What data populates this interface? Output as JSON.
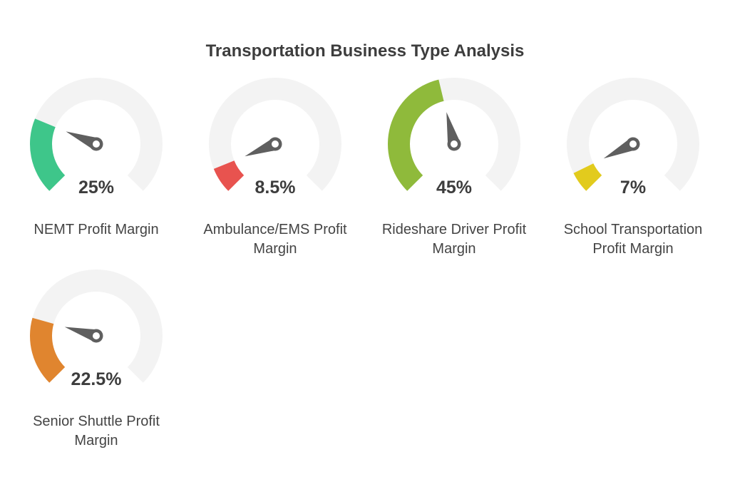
{
  "chart_data": {
    "type": "gauge",
    "title": "Transportation Business Type Analysis",
    "range": [
      0,
      100
    ],
    "unit": "%",
    "track_color": "#f3f3f3",
    "needle_color": "#5f5f5f",
    "gauges": [
      {
        "label": "NEMT Profit Margin",
        "value": 25,
        "value_label": "25%",
        "color": "#3ec68a"
      },
      {
        "label": "Ambulance/EMS Profit Margin",
        "value": 8.5,
        "value_label": "8.5%",
        "color": "#e8534f"
      },
      {
        "label": "Rideshare Driver Profit Margin",
        "value": 45,
        "value_label": "45%",
        "color": "#8fba3b"
      },
      {
        "label": "School Transportation Profit Margin",
        "value": 7,
        "value_label": "7%",
        "color": "#e2cb1d"
      },
      {
        "label": "Senior Shuttle Profit Margin",
        "value": 22.5,
        "value_label": "22.5%",
        "color": "#e0852f"
      }
    ]
  }
}
